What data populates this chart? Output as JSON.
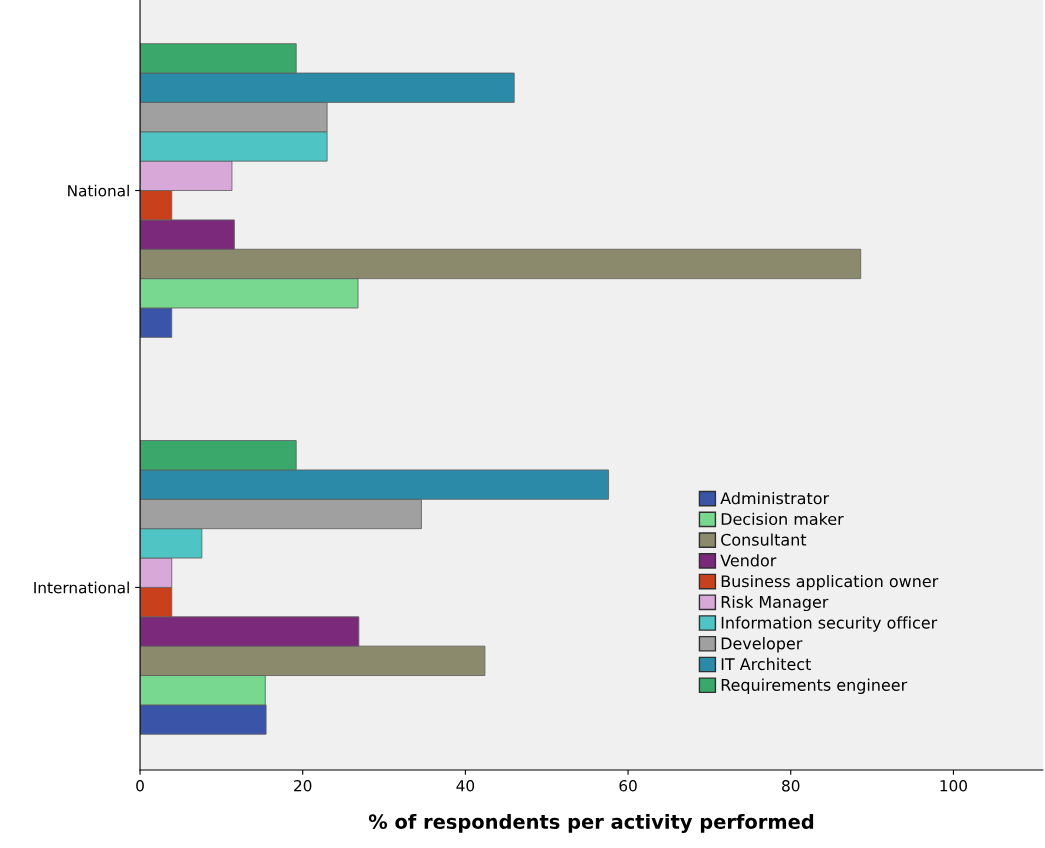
{
  "chart_data": {
    "type": "bar",
    "orientation": "horizontal",
    "xlabel": "% of respondents per activity performed",
    "categories": [
      "National",
      "International"
    ],
    "xlim": [
      0,
      111
    ],
    "xticks": [
      0,
      20,
      40,
      60,
      80,
      100
    ],
    "grid": false,
    "legend": "bottom right",
    "series": [
      {
        "name": "Administrator",
        "color": "#3a55a8",
        "values": [
          3.9,
          15.5
        ]
      },
      {
        "name": "Decision maker",
        "color": "#78d890",
        "values": [
          26.8,
          15.4
        ]
      },
      {
        "name": "Consultant",
        "color": "#8c8a6c",
        "values": [
          88.6,
          42.4
        ]
      },
      {
        "name": "Vendor",
        "color": "#7b2a7b",
        "values": [
          11.6,
          26.9
        ]
      },
      {
        "name": "Business application owner",
        "color": "#c8401c",
        "values": [
          3.9,
          3.9
        ]
      },
      {
        "name": "Risk Manager",
        "color": "#d8a8d8",
        "values": [
          11.3,
          3.9
        ]
      },
      {
        "name": "Information security officer",
        "color": "#4fc4c4",
        "values": [
          23.0,
          7.6
        ]
      },
      {
        "name": "Developer",
        "color": "#a0a0a0",
        "values": [
          23.0,
          34.6
        ]
      },
      {
        "name": "IT Architect",
        "color": "#2a8aa8",
        "values": [
          46.0,
          57.6
        ]
      },
      {
        "name": "Requirements engineer",
        "color": "#3aa86a",
        "values": [
          19.2,
          19.2
        ]
      }
    ]
  }
}
